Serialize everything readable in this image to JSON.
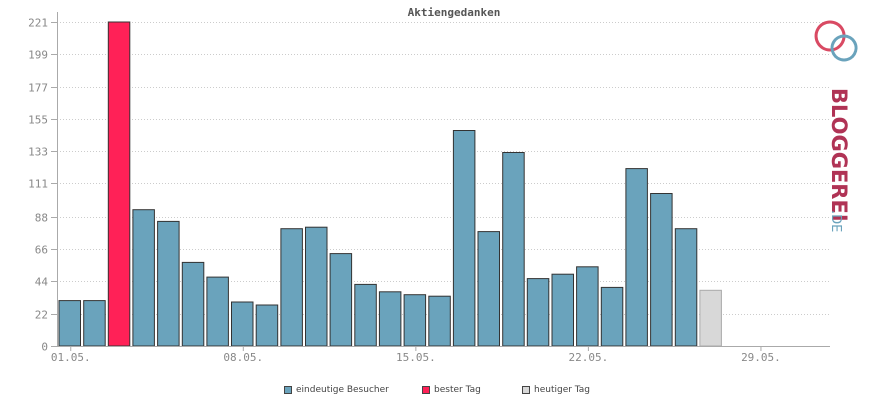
{
  "chart_data": {
    "type": "bar",
    "title": "Aktiengedanken",
    "x_tick_labels": [
      "01.05.",
      "08.05.",
      "15.05.",
      "22.05.",
      "29.05."
    ],
    "y_ticks": [
      0,
      22,
      44,
      66,
      88,
      111,
      133,
      155,
      177,
      199,
      221
    ],
    "ylim": [
      0,
      221
    ],
    "days": 31,
    "values": [
      31,
      31,
      221,
      93,
      85,
      57,
      47,
      30,
      28,
      80,
      81,
      63,
      42,
      37,
      35,
      34,
      147,
      78,
      132,
      46,
      49,
      54,
      40,
      121,
      104,
      80,
      38,
      0,
      0,
      0,
      0
    ],
    "best_day_index": 2,
    "today_index": 26,
    "grid": true,
    "legend_placement": "bottom",
    "legend": [
      {
        "label": "eindeutige Besucher",
        "color": "#6aa3bc"
      },
      {
        "label": "bester Tag",
        "color": "#ff2157"
      },
      {
        "label": "heutiger Tag",
        "color": "#d8d8d8"
      }
    ],
    "colors": {
      "bar": "#6aa3bc",
      "best": "#ff2157",
      "today": "#d8d8d8",
      "bar_stroke": "#333333",
      "grid": "#cccccc",
      "axis": "#aaaaaa"
    }
  },
  "logo": {
    "text_main": "BLOGGEREI",
    "text_suffix": ".DE",
    "icon": "bloggerei-logo-icon"
  }
}
